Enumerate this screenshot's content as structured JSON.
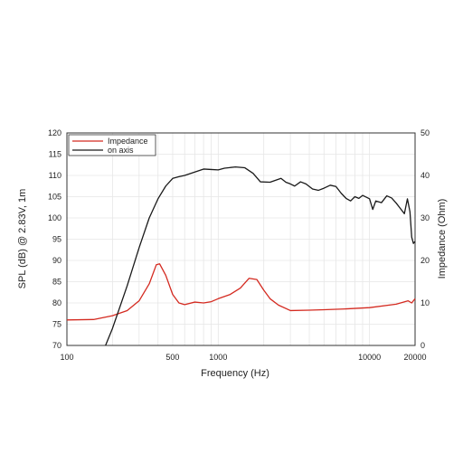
{
  "chart_data": {
    "type": "line",
    "xlabel": "Frequency (Hz)",
    "ylabel": "SPL (dB) @ 2.83V, 1m",
    "y2label": "Impedance (Ohm)",
    "x_scale": "log",
    "xlim": [
      100,
      20000
    ],
    "ylim": [
      70,
      120
    ],
    "y2lim": [
      0,
      50
    ],
    "x_ticks": [
      100,
      500,
      1000,
      10000,
      20000
    ],
    "x_tick_labels": [
      "100",
      "500",
      "1000",
      "10000",
      "20000"
    ],
    "y_ticks": [
      70,
      75,
      80,
      85,
      90,
      95,
      100,
      105,
      110,
      115,
      120
    ],
    "y2_ticks": [
      0,
      10,
      20,
      30,
      40,
      50
    ],
    "grid": true,
    "legend_position": "top-left",
    "series": [
      {
        "name": "Impedance",
        "axis": "right",
        "color": "#d42a20",
        "points": [
          [
            100,
            6
          ],
          [
            150,
            6.1
          ],
          [
            200,
            7
          ],
          [
            250,
            8.2
          ],
          [
            300,
            10.5
          ],
          [
            350,
            14.5
          ],
          [
            390,
            19
          ],
          [
            410,
            19.2
          ],
          [
            450,
            16.5
          ],
          [
            500,
            12
          ],
          [
            550,
            10
          ],
          [
            600,
            9.6
          ],
          [
            700,
            10.2
          ],
          [
            800,
            10
          ],
          [
            900,
            10.3
          ],
          [
            1000,
            11
          ],
          [
            1200,
            12
          ],
          [
            1400,
            13.5
          ],
          [
            1600,
            15.8
          ],
          [
            1800,
            15.5
          ],
          [
            2000,
            13
          ],
          [
            2200,
            11
          ],
          [
            2500,
            9.5
          ],
          [
            3000,
            8.2
          ],
          [
            4000,
            8.3
          ],
          [
            5000,
            8.4
          ],
          [
            7000,
            8.6
          ],
          [
            10000,
            8.9
          ],
          [
            15000,
            9.7
          ],
          [
            18000,
            10.5
          ],
          [
            19000,
            10
          ],
          [
            20000,
            11
          ]
        ]
      },
      {
        "name": "on axis",
        "axis": "left",
        "color": "#1a1a1a",
        "points": [
          [
            180,
            70
          ],
          [
            200,
            74
          ],
          [
            250,
            84
          ],
          [
            300,
            93
          ],
          [
            350,
            100
          ],
          [
            400,
            104.5
          ],
          [
            450,
            107.5
          ],
          [
            500,
            109.3
          ],
          [
            550,
            109.7
          ],
          [
            600,
            110
          ],
          [
            700,
            110.8
          ],
          [
            800,
            111.5
          ],
          [
            900,
            111.4
          ],
          [
            1000,
            111.3
          ],
          [
            1100,
            111.7
          ],
          [
            1300,
            112
          ],
          [
            1500,
            111.8
          ],
          [
            1700,
            110.5
          ],
          [
            1900,
            108.5
          ],
          [
            2200,
            108.4
          ],
          [
            2600,
            109.3
          ],
          [
            2800,
            108.4
          ],
          [
            3000,
            108
          ],
          [
            3200,
            107.5
          ],
          [
            3500,
            108.5
          ],
          [
            3800,
            108
          ],
          [
            4200,
            106.8
          ],
          [
            4600,
            106.5
          ],
          [
            5000,
            107
          ],
          [
            5500,
            107.7
          ],
          [
            6000,
            107.4
          ],
          [
            6500,
            105.8
          ],
          [
            7000,
            104.6
          ],
          [
            7500,
            104
          ],
          [
            8000,
            105
          ],
          [
            8500,
            104.6
          ],
          [
            9000,
            105.3
          ],
          [
            10000,
            104.5
          ],
          [
            10500,
            102
          ],
          [
            11000,
            104
          ],
          [
            12000,
            103.6
          ],
          [
            13000,
            105.2
          ],
          [
            14000,
            104.7
          ],
          [
            15000,
            103.5
          ],
          [
            16000,
            102.2
          ],
          [
            17000,
            101
          ],
          [
            17800,
            104.5
          ],
          [
            18500,
            101.5
          ],
          [
            19000,
            95.5
          ],
          [
            19500,
            94
          ],
          [
            20000,
            94.5
          ]
        ]
      }
    ],
    "legend": [
      "Impedance",
      "on axis"
    ]
  }
}
